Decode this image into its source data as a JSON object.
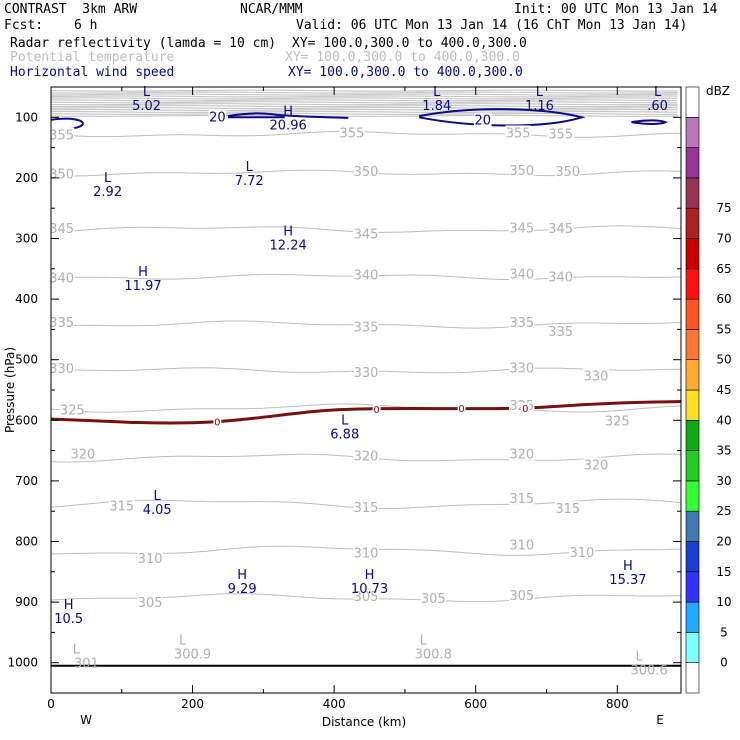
{
  "header": {
    "model": "CONTRAST  3km ARW",
    "center": "NCAR/MMM",
    "init": "Init: 00 UTC Mon 13 Jan 14",
    "fcst_label": "Fcst:",
    "fcst_value": "6 h",
    "valid": "Valid: 06 UTC Mon 13 Jan 14 (16 ChT Mon 13 Jan 14)",
    "fields": [
      {
        "name": "Radar reflectivity (lamda = 10 cm)",
        "xy": "XY= 100.0,300.0 to 400.0,300.0",
        "color": "#000000"
      },
      {
        "name": "Potential temperature",
        "xy": "XY= 100.0,300.0 to 400.0,300.0",
        "color": "#bdbdbd"
      },
      {
        "name": "Horizontal wind speed",
        "xy": "XY= 100.0,300.0 to 400.0,300.0",
        "color": "#0a0a8a"
      }
    ]
  },
  "chart_data": {
    "type": "cross-section contour",
    "xlabel": "Distance (km)",
    "ylabel": "Pressure (hPa)",
    "xlim": [
      0,
      890
    ],
    "ylim_hpa": [
      50,
      1050
    ],
    "x_ticks": [
      0,
      200,
      400,
      600,
      800
    ],
    "x_ticklabels": [
      "0",
      "200",
      "400",
      "600",
      "800"
    ],
    "y_ticks": [
      100,
      200,
      300,
      400,
      500,
      600,
      700,
      800,
      900,
      1000
    ],
    "y_ticklabels": [
      "100",
      "200",
      "300",
      "400",
      "500",
      "600",
      "700",
      "800",
      "900",
      "1000"
    ],
    "direction_labels": {
      "west": "W",
      "east": "E"
    },
    "colorbar": {
      "unit": "dBZ",
      "levels": [
        "0",
        "5",
        "10",
        "15",
        "20",
        "25",
        "30",
        "35",
        "40",
        "45",
        "50",
        "55",
        "60",
        "65",
        "70",
        "75"
      ],
      "colors": [
        "#ffffff",
        "#7fffff",
        "#22aaff",
        "#3333ff",
        "#1a3fcc",
        "#3f7ab3",
        "#33ff33",
        "#22cc22",
        "#11aa11",
        "#ffdd22",
        "#ffaa33",
        "#ff7733",
        "#ff5522",
        "#ff1111",
        "#cc0000",
        "#aa2222",
        "#993355",
        "#993399",
        "#bb77bb",
        "#ffffff"
      ]
    },
    "theta_labels": [
      {
        "text": "355",
        "x": 15,
        "p": 128
      },
      {
        "text": "355",
        "x": 425,
        "p": 125
      },
      {
        "text": "355",
        "x": 660,
        "p": 125
      },
      {
        "text": "355",
        "x": 720,
        "p": 127
      },
      {
        "text": "350",
        "x": 15,
        "p": 193
      },
      {
        "text": "350",
        "x": 445,
        "p": 189
      },
      {
        "text": "350",
        "x": 665,
        "p": 187
      },
      {
        "text": "350",
        "x": 730,
        "p": 189
      },
      {
        "text": "345",
        "x": 15,
        "p": 283
      },
      {
        "text": "345",
        "x": 445,
        "p": 292
      },
      {
        "text": "345",
        "x": 665,
        "p": 282
      },
      {
        "text": "345",
        "x": 720,
        "p": 283
      },
      {
        "text": "340",
        "x": 15,
        "p": 364
      },
      {
        "text": "340",
        "x": 445,
        "p": 359
      },
      {
        "text": "340",
        "x": 665,
        "p": 358
      },
      {
        "text": "340",
        "x": 720,
        "p": 363
      },
      {
        "text": "335",
        "x": 15,
        "p": 438
      },
      {
        "text": "335",
        "x": 445,
        "p": 445
      },
      {
        "text": "335",
        "x": 665,
        "p": 438
      },
      {
        "text": "335",
        "x": 720,
        "p": 453
      },
      {
        "text": "330",
        "x": 15,
        "p": 514
      },
      {
        "text": "330",
        "x": 445,
        "p": 520
      },
      {
        "text": "330",
        "x": 665,
        "p": 513
      },
      {
        "text": "330",
        "x": 770,
        "p": 526
      },
      {
        "text": "325",
        "x": 30,
        "p": 582
      },
      {
        "text": "325",
        "x": 665,
        "p": 575
      },
      {
        "text": "325",
        "x": 800,
        "p": 600
      },
      {
        "text": "320",
        "x": 45,
        "p": 655
      },
      {
        "text": "320",
        "x": 445,
        "p": 658
      },
      {
        "text": "320",
        "x": 665,
        "p": 655
      },
      {
        "text": "320",
        "x": 770,
        "p": 673
      },
      {
        "text": "315",
        "x": 100,
        "p": 741
      },
      {
        "text": "315",
        "x": 445,
        "p": 743
      },
      {
        "text": "315",
        "x": 665,
        "p": 728
      },
      {
        "text": "315",
        "x": 730,
        "p": 745
      },
      {
        "text": "310",
        "x": 140,
        "p": 827
      },
      {
        "text": "310",
        "x": 445,
        "p": 818
      },
      {
        "text": "310",
        "x": 665,
        "p": 805
      },
      {
        "text": "310",
        "x": 750,
        "p": 817
      },
      {
        "text": "305",
        "x": 140,
        "p": 900
      },
      {
        "text": "305",
        "x": 445,
        "p": 890
      },
      {
        "text": "305",
        "x": 540,
        "p": 893
      },
      {
        "text": "305",
        "x": 665,
        "p": 888
      }
    ],
    "wind_contour_labels": [
      {
        "text": "20",
        "x": 235,
        "p": 99
      },
      {
        "text": "20",
        "x": 610,
        "p": 104
      }
    ],
    "reflectivity_contour_labels": [
      {
        "text": "0",
        "x": 235,
        "p": 602
      },
      {
        "text": "0",
        "x": 460,
        "p": 581
      },
      {
        "text": "0",
        "x": 580,
        "p": 580
      },
      {
        "text": "0",
        "x": 670,
        "p": 580
      }
    ],
    "extrema_wind": [
      {
        "kind": "L",
        "value": "5.02",
        "x": 135,
        "p": 68
      },
      {
        "kind": "L",
        "value": "1.84",
        "x": 545,
        "p": 68
      },
      {
        "kind": "L",
        "value": "1.16",
        "x": 690,
        "p": 68
      },
      {
        "kind": "L",
        "value": ".60",
        "x": 857,
        "p": 68
      },
      {
        "kind": "H",
        "value": "20.96",
        "x": 335,
        "p": 100
      },
      {
        "kind": "L",
        "value": "2.92",
        "x": 80,
        "p": 210
      },
      {
        "kind": "L",
        "value": "7.72",
        "x": 280,
        "p": 192
      },
      {
        "kind": "H",
        "value": "12.24",
        "x": 335,
        "p": 298
      },
      {
        "kind": "H",
        "value": "11.97",
        "x": 130,
        "p": 365
      },
      {
        "kind": "L",
        "value": "6.88",
        "x": 415,
        "p": 610
      },
      {
        "kind": "L",
        "value": "4.05",
        "x": 150,
        "p": 735
      },
      {
        "kind": "H",
        "value": "15.37",
        "x": 815,
        "p": 850
      },
      {
        "kind": "H",
        "value": "9.29",
        "x": 270,
        "p": 865
      },
      {
        "kind": "H",
        "value": "10.73",
        "x": 450,
        "p": 865
      },
      {
        "kind": "H",
        "value": "10.5",
        "x": 25,
        "p": 915
      }
    ],
    "extrema_theta": [
      {
        "kind": "L",
        "value": "300.9",
        "x": 200,
        "p": 973
      },
      {
        "kind": "L",
        "value": "300.8",
        "x": 540,
        "p": 973
      },
      {
        "kind": "L",
        "value": "301",
        "x": 50,
        "p": 988
      },
      {
        "kind": "L",
        "value": "300.6",
        "x": 845,
        "p": 1000
      }
    ]
  }
}
